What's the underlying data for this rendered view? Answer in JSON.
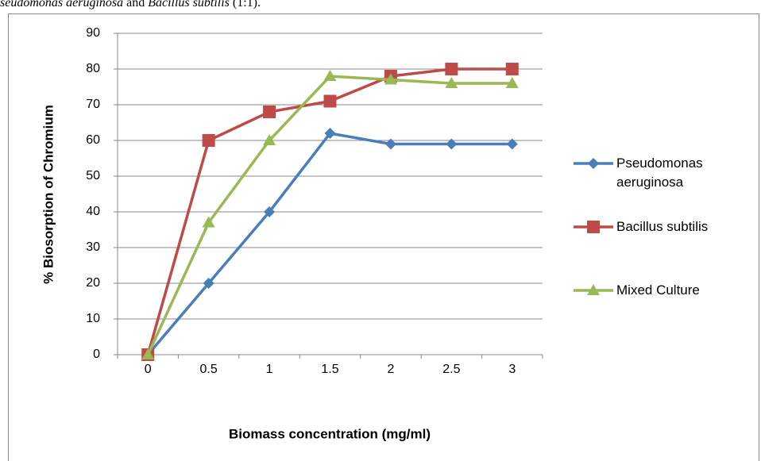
{
  "caption": [
    "seudomonas aeruginosa",
    "and",
    "Bacillus subtilis",
    "(1:1)."
  ],
  "chart_data": {
    "type": "line",
    "ylabel": "% Biosorption of Chromium",
    "xlabel": "Biomass concentration (mg/ml)",
    "categories": [
      "0",
      "0.5",
      "1",
      "1.5",
      "2",
      "2.5",
      "3"
    ],
    "series": [
      {
        "name": "Pseudomonas aeruginosa",
        "color": "#4a7ebb",
        "marker": "diamond",
        "values": [
          0,
          20,
          40,
          62,
          59,
          59,
          59
        ]
      },
      {
        "name": "Bacillus subtilis",
        "color": "#be4b48",
        "marker": "square",
        "values": [
          0,
          60,
          68,
          71,
          78,
          80,
          80
        ]
      },
      {
        "name": "Mixed Culture",
        "color": "#98b954",
        "marker": "triangle",
        "values": [
          0,
          37,
          60,
          78,
          77,
          76,
          76
        ]
      }
    ],
    "ylim": [
      0,
      90
    ],
    "yticks": [
      0,
      10,
      20,
      30,
      40,
      50,
      60,
      70,
      80,
      90
    ],
    "grid": true,
    "legend": "right"
  }
}
